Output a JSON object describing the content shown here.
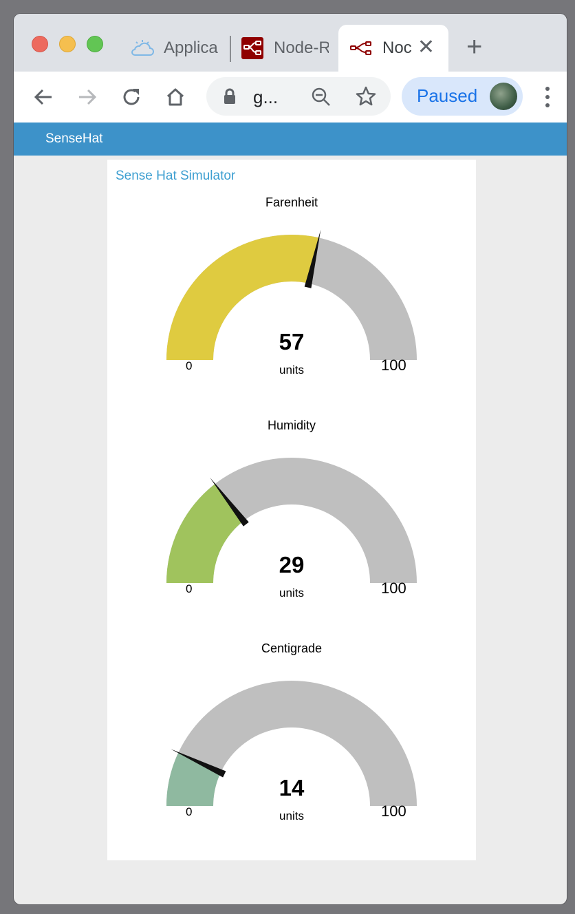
{
  "browser": {
    "tabs": [
      {
        "label": "Applica",
        "icon": "cloud-icon"
      },
      {
        "label": "Node-R",
        "icon": "node-red-icon"
      },
      {
        "label": "Noc",
        "icon": "node-red-flow-icon",
        "active": true
      }
    ],
    "address": "g...",
    "profile_status": "Paused"
  },
  "app": {
    "title": "SenseHat",
    "group_title": "Sense Hat Simulator"
  },
  "gauges": [
    {
      "title": "Farenheit",
      "value": 57,
      "display": "57",
      "units": "units",
      "min": 0,
      "max": 100,
      "min_label": "0",
      "max_label": "100",
      "color": "#dfcb40"
    },
    {
      "title": "Humidity",
      "value": 29,
      "display": "29",
      "units": "units",
      "min": 0,
      "max": 100,
      "min_label": "0",
      "max_label": "100",
      "color": "#a0c35d"
    },
    {
      "title": "Centigrade",
      "value": 14,
      "display": "14",
      "units": "units",
      "min": 0,
      "max": 100,
      "min_label": "0",
      "max_label": "100",
      "color": "#8fb9a0"
    }
  ],
  "colors": {
    "appbar": "#3d92c9",
    "gauge_track": "#bfbfbf",
    "needle": "#111111"
  }
}
